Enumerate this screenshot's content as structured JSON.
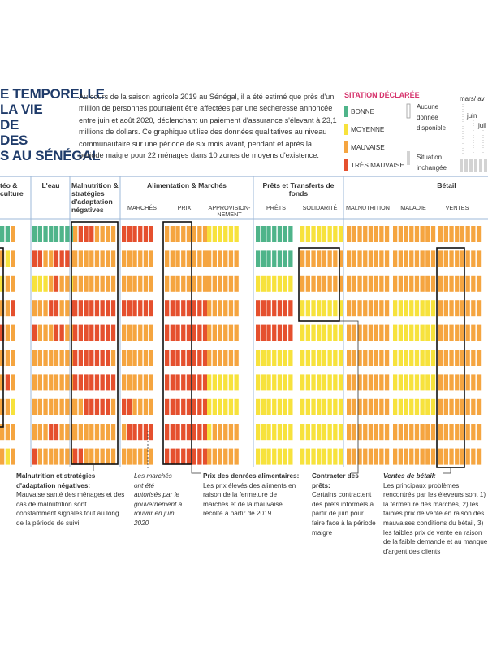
{
  "chart_data": {
    "type": "heatmap",
    "title_lines": [
      "E TEMPORELLE",
      "LA VIE",
      "DE",
      "DES",
      "S AU SÉNÉGAL"
    ],
    "description": "Au cours de la saison agricole 2019 au Sénégal, il a été estimé que près d'un million de personnes pourraient être affectées par une sécheresse annoncée entre juin et août 2020, déclenchant un paiement d'assurance s'élevant à 23,1 millions de dollars. Ce graphique utilise des données qualitatives au niveau communautaire sur une période de six mois avant, pendant et après la période maigre pour 22 ménages dans 10 zones de moyens d'existence.",
    "legend": {
      "title": "SITATION DÉCLARÉE",
      "levels": [
        {
          "label": "BONNE",
          "color": "#4fb48a"
        },
        {
          "label": "MOYENNE",
          "color": "#f7e23c"
        },
        {
          "label": "MAUVAISE",
          "color": "#f5a540"
        },
        {
          "label": "TRÈS MAUVAISE",
          "color": "#e5502e"
        }
      ],
      "no_data": "Aucune donnée disponible",
      "unchanged": "Situation inchangée",
      "month_label": "mars/ av",
      "month_ticks": [
        "juin",
        "juil"
      ]
    },
    "colors": {
      "B": "#4fb48a",
      "M": "#f7e23c",
      "A": "#f5a540",
      "T": "#e5502e",
      "N": "#ffffff",
      "U": "#d3d3d3",
      "grid": "#9db8d8",
      "title": "#1f3b6a"
    },
    "groups": [
      {
        "label": "téo & culture"
      },
      {
        "label": "L'eau"
      },
      {
        "label": "Malnutrition & stratégies d'adaptation négatives"
      },
      {
        "label": "Alimentation & Marchés",
        "subs": [
          "MARCHÉS",
          "PRIX",
          "APPROVISION-NEMENT"
        ]
      },
      {
        "label": "Prêts et Transferts de fonds",
        "subs": [
          "PRÊTS",
          "SOLIDARITÉ"
        ]
      },
      {
        "label": "Bétail",
        "subs": [
          "MALNUTRITION",
          "MALADIE",
          "VENTES"
        ]
      }
    ],
    "rows": 10,
    "blocks": [
      {
        "name": "meteo",
        "rows": [
          "BBA",
          "AMA",
          "MAA",
          "AAT",
          "TAA",
          "AAA",
          "ATA",
          "AAM",
          "AAA",
          "AMA"
        ]
      },
      {
        "name": "eau",
        "rows": [
          "BBBBBBBB",
          "TTAATTTA",
          "MMMATAAM",
          "AAATTAAT",
          "TAAATTAA",
          "AAAAAAAA",
          "AAAAAAAA",
          "AAAAAAAA",
          "AAATTAAA",
          "TAAAAAAA"
        ]
      },
      {
        "name": "malnutrition",
        "rows": [
          "ATTTAAAA",
          "AAAAAAAA",
          "AAAAAAAA",
          "TTTTTTTT",
          "TTTTTTTT",
          "TTTTTTTA",
          "TTTTTTTT",
          "AATTTTTA",
          "AAAAAAAA",
          "TTAAAAAA"
        ]
      },
      {
        "name": "marches",
        "rows": [
          "TTTTTT",
          "AAAAAA",
          "AAAAAA",
          "TTTTTT",
          "AAAAAA",
          "AAAAAA",
          "AAAAAA",
          "TTAAAA",
          "ATTTTT",
          "AAAAAA"
        ]
      },
      {
        "name": "prix",
        "rows": [
          "AAAAAAAA",
          "AAAAAAAA",
          "AAAAAAAA",
          "TTTTTTTT",
          "TTTTTTTT",
          "TTTTTTTT",
          "TTTTTTTT",
          "TTTTTTTT",
          "TTTTTTTT",
          "TTTTTTTT"
        ]
      },
      {
        "name": "approvisionnement",
        "rows": [
          "MMMMMM",
          "AAAAAA",
          "AAAAAA",
          "AAAAAA",
          "AAAAAA",
          "AAAAAA",
          "MMMMMM",
          "MMMMMM",
          "MAAAAA",
          "AAAAAA"
        ]
      },
      {
        "name": "prets",
        "rows": [
          "BBBBBBB",
          "BBBBBBB",
          "MMMMMMM",
          "TTTTTTT",
          "TTTTTTT",
          "MMMMMMM",
          "MMMMMMM",
          "MMMMMMM",
          "MMMMMMM",
          "MMMMMMM"
        ]
      },
      {
        "name": "solidarite",
        "rows": [
          "MMMMMMMM",
          "AAAAAAAA",
          "AAAAAAAA",
          "MMMMMMMM",
          "MMMMMMMM",
          "MMMMMMMM",
          "MMMMMMMM",
          "MMMMMMMM",
          "MMMMMMMM",
          "MMMMMMMM"
        ]
      },
      {
        "name": "betail-malnutrition",
        "rows": [
          "AAAAAAAA",
          "AAAAAAAA",
          "AAAAAAAA",
          "AAAAAAAA",
          "AAAAAAAA",
          "AAAAAAAA",
          "AAAAAAAA",
          "AAAAAAAA",
          "AAAAAAAA",
          "AAAAAAAA"
        ]
      },
      {
        "name": "maladie",
        "rows": [
          "AAAAAAAA",
          "AAAAAAAA",
          "AAAAAAAA",
          "MMMMMMMM",
          "MMMMMMMM",
          "MMMMMMMM",
          "MMMMMMMM",
          "MMMMMMMM",
          "AAAAAAAA",
          "AAAAAAAA"
        ]
      },
      {
        "name": "ventes",
        "rows": [
          "AAAAAAAA",
          "AAAAAAAA",
          "AAAAAAAA",
          "AAAAAAAA",
          "AAAAAAAA",
          "AAAAAAAA",
          "AAAAAAAA",
          "AAAAAAAA",
          "AAAAAAAA",
          "AAAAAAAA"
        ]
      }
    ],
    "annotations": {
      "malnutrition_title": "Malnutrition et stratégies d'adaptation négatives:",
      "malnutrition_text": "Mauvaise santé des ménages et des cas de malnutrition sont constamment signalés tout au long de la période de suivi",
      "marches_text": "Les marchés ont été autorisés par le gouvernement à rouvrir en juin 2020",
      "prix_title": "Prix des denrées alimentaires:",
      "prix_text": "Les prix élevés des aliments en raison de la fermeture de marchés et de la mauvaise récolte à partir de 2019",
      "prets_title": "Contracter des prêts:",
      "prets_text": "Certains contractent des prêts informels à partir de juin pour faire face à la période maigre",
      "ventes_title": "Ventes de bétail:",
      "ventes_text": "Les principaux problèmes rencontrés par les éleveurs sont 1) la fermeture des marchés, 2) les faibles prix de vente en raison des mauvaises conditions du bétail, 3) les faibles prix de vente en raison de la faible demande et au manque d'argent des clients"
    }
  }
}
